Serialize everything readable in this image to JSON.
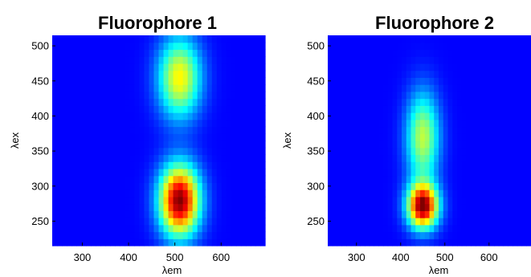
{
  "chart_data": [
    {
      "type": "heatmap",
      "title": "Fluorophore 1",
      "xlabel": "λem",
      "ylabel": "λex",
      "xlim": [
        235,
        695
      ],
      "ylim": [
        215,
        515
      ],
      "xticks": [
        300,
        400,
        500,
        600
      ],
      "yticks": [
        250,
        300,
        350,
        400,
        450,
        500
      ],
      "colormap": "jet",
      "background_color": "#00008f",
      "peaks": [
        {
          "em": 510,
          "ex": 280,
          "intensity": 1.0,
          "em_width": 30,
          "ex_width": 35
        },
        {
          "em": 510,
          "ex": 455,
          "intensity": 0.58,
          "em_width": 32,
          "ex_width": 40
        }
      ]
    },
    {
      "type": "heatmap",
      "title": "Fluorophore 2",
      "xlabel": "λem",
      "ylabel": "λex",
      "xlim": [
        235,
        695
      ],
      "ylim": [
        215,
        515
      ],
      "xticks": [
        300,
        400,
        500,
        600
      ],
      "yticks": [
        250,
        300,
        350,
        400,
        450,
        500
      ],
      "colormap": "jet",
      "background_color": "#00008f",
      "peaks": [
        {
          "em": 450,
          "ex": 272,
          "intensity": 1.0,
          "em_width": 24,
          "ex_width": 22
        },
        {
          "em": 450,
          "ex": 370,
          "intensity": 0.5,
          "em_width": 26,
          "ex_width": 45
        }
      ]
    }
  ]
}
